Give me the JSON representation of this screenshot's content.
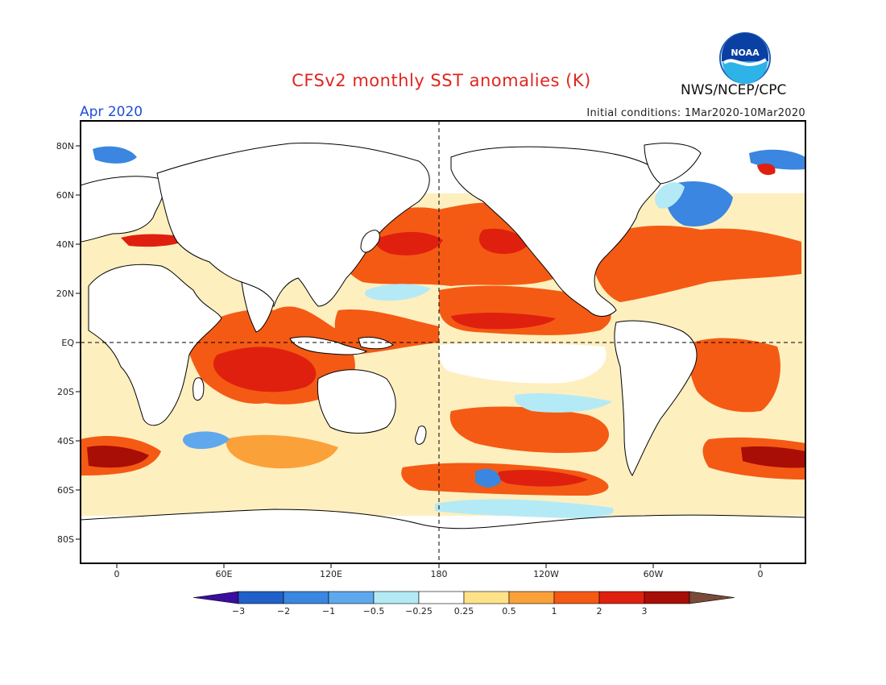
{
  "header": {
    "title": "CFSv2 monthly SST anomalies (K)",
    "organization": "NWS/NCEP/CPC",
    "logo_text": "NOAA",
    "valid_month": "Apr 2020",
    "initial_conditions": "Initial conditions: 1Mar2020-10Mar2020"
  },
  "map": {
    "projection": "equirectangular",
    "lat_ticks": [
      "80N",
      "60N",
      "40N",
      "20N",
      "EQ",
      "20S",
      "40S",
      "60S",
      "80S"
    ],
    "lon_ticks": [
      "0",
      "60E",
      "120E",
      "180",
      "120W",
      "60W",
      "0"
    ],
    "reference_lines": [
      "equator",
      "dateline"
    ]
  },
  "colorbar": {
    "labels": [
      "-3",
      "-2",
      "-1",
      "-0.5",
      "-0.25",
      "0.25",
      "0.5",
      "1",
      "2",
      "3"
    ],
    "colors": [
      "#3b0d9e",
      "#1f61c9",
      "#3a86e0",
      "#5fa8ee",
      "#b4eaf5",
      "#ffffff",
      "#fde28a",
      "#fba13a",
      "#f45a14",
      "#e0200f",
      "#a80d06",
      "#7a4a3a"
    ]
  },
  "colors": {
    "land": "#ffffff",
    "coast": "#000000",
    "frame": "#000000",
    "title": "#e0261f",
    "month": "#1f4fd6",
    "warm_strong": "#e0200f",
    "warm": "#f45a14",
    "warm_weak": "#fba13a",
    "warm_slight": "#fde28a",
    "cold_slight": "#b4eaf5",
    "cold": "#3a86e0"
  }
}
